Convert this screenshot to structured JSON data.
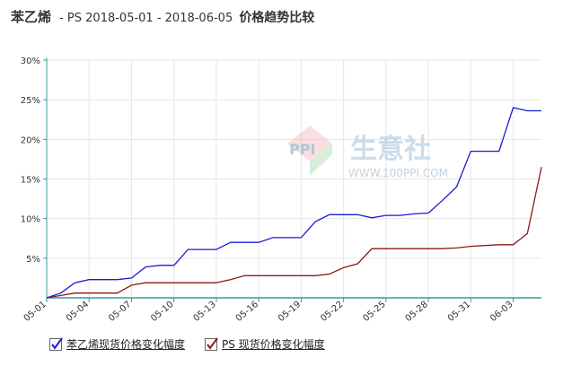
{
  "title": {
    "main": "苯乙烯",
    "sub": "- PS 2018-05-01 - 2018-06-05",
    "suffix": "价格趋势比较"
  },
  "watermark": {
    "logo_text": "PPI",
    "brand": "生意社",
    "url": "WWW.100PPI.COM"
  },
  "colors": {
    "series1": "#1a1ad6",
    "series2": "#8b1a1a",
    "axis": "#3a9a9a",
    "grid": "#e6e6e6"
  },
  "chart_data": {
    "type": "line",
    "ylim": [
      0,
      30
    ],
    "yticks": [
      5,
      10,
      15,
      20,
      25,
      30
    ],
    "ytick_labels": [
      "5%",
      "10%",
      "15%",
      "20%",
      "25%",
      "30%"
    ],
    "x": [
      "05-01",
      "05-02",
      "05-03",
      "05-04",
      "05-05",
      "05-06",
      "05-07",
      "05-08",
      "05-09",
      "05-10",
      "05-11",
      "05-12",
      "05-13",
      "05-14",
      "05-15",
      "05-16",
      "05-17",
      "05-18",
      "05-19",
      "05-20",
      "05-21",
      "05-22",
      "05-23",
      "05-24",
      "05-25",
      "05-26",
      "05-27",
      "05-28",
      "05-29",
      "05-30",
      "05-31",
      "06-01",
      "06-02",
      "06-03",
      "06-04",
      "06-05"
    ],
    "xtick_labels": [
      "05-01",
      "05-04",
      "05-07",
      "05-10",
      "05-13",
      "05-16",
      "05-19",
      "05-22",
      "05-25",
      "05-28",
      "05-31",
      "06-03"
    ],
    "series": [
      {
        "name": "苯乙烯现货价格变化幅度",
        "values": [
          0,
          0.6,
          1.9,
          2.3,
          2.3,
          2.3,
          2.5,
          3.9,
          4.1,
          4.1,
          6.1,
          6.1,
          6.1,
          7,
          7,
          7,
          7.6,
          7.6,
          7.6,
          9.6,
          10.5,
          10.5,
          10.5,
          10.1,
          10.4,
          10.4,
          10.6,
          10.7,
          12.3,
          14,
          18.5,
          18.5,
          18.5,
          24,
          23.6,
          23.6
        ]
      },
      {
        "name": "PS 现货价格变化幅度",
        "values": [
          0,
          0.3,
          0.6,
          0.6,
          0.6,
          0.6,
          1.6,
          1.9,
          1.9,
          1.9,
          1.9,
          1.9,
          1.9,
          2.3,
          2.8,
          2.8,
          2.8,
          2.8,
          2.8,
          2.8,
          3,
          3.8,
          4.3,
          6.2,
          6.2,
          6.2,
          6.2,
          6.2,
          6.2,
          6.3,
          6.5,
          6.6,
          6.7,
          6.7,
          8.1,
          16.5
        ]
      }
    ]
  },
  "legend": {
    "items": [
      {
        "label": "苯乙烯现货价格变化幅度",
        "checked": true
      },
      {
        "label": "PS 现货价格变化幅度",
        "checked": true
      }
    ]
  }
}
